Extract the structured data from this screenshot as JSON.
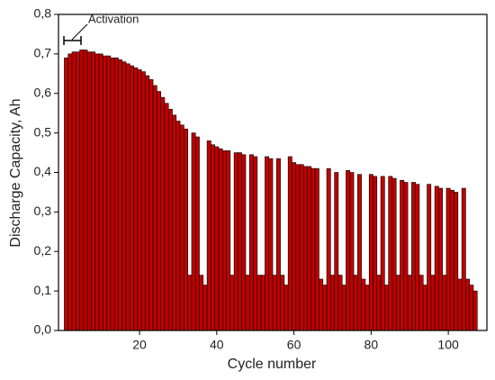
{
  "chart_data": {
    "type": "bar",
    "x_label": "Cycle number",
    "y_label": "Discharge Capacity, Ah",
    "annotation": "Activation",
    "x": [
      1,
      2,
      3,
      4,
      5,
      6,
      7,
      8,
      9,
      10,
      11,
      12,
      13,
      14,
      15,
      16,
      17,
      18,
      19,
      20,
      21,
      22,
      23,
      24,
      25,
      26,
      27,
      28,
      29,
      30,
      31,
      32,
      33,
      34,
      35,
      36,
      37,
      38,
      39,
      40,
      41,
      42,
      43,
      44,
      45,
      46,
      47,
      48,
      49,
      50,
      51,
      52,
      53,
      54,
      55,
      56,
      57,
      58,
      59,
      60,
      61,
      62,
      63,
      64,
      65,
      66,
      67,
      68,
      69,
      70,
      71,
      72,
      73,
      74,
      75,
      76,
      77,
      78,
      79,
      80,
      81,
      82,
      83,
      84,
      85,
      86,
      87,
      88,
      89,
      90,
      91,
      92,
      93,
      94,
      95,
      96,
      97,
      98,
      99,
      100,
      101,
      102,
      103,
      104,
      105,
      106,
      107
    ],
    "values": [
      0.69,
      0.7,
      0.705,
      0.705,
      0.71,
      0.71,
      0.705,
      0.705,
      0.7,
      0.7,
      0.695,
      0.695,
      0.69,
      0.69,
      0.685,
      0.68,
      0.675,
      0.67,
      0.665,
      0.66,
      0.655,
      0.645,
      0.635,
      0.62,
      0.605,
      0.59,
      0.575,
      0.56,
      0.545,
      0.53,
      0.52,
      0.51,
      0.14,
      0.5,
      0.49,
      0.14,
      0.115,
      0.48,
      0.47,
      0.465,
      0.46,
      0.455,
      0.455,
      0.14,
      0.45,
      0.45,
      0.445,
      0.14,
      0.445,
      0.44,
      0.14,
      0.14,
      0.44,
      0.435,
      0.14,
      0.435,
      0.14,
      0.115,
      0.44,
      0.425,
      0.42,
      0.42,
      0.415,
      0.415,
      0.41,
      0.41,
      0.13,
      0.115,
      0.41,
      0.14,
      0.4,
      0.14,
      0.115,
      0.405,
      0.4,
      0.14,
      0.395,
      0.13,
      0.115,
      0.395,
      0.39,
      0.14,
      0.39,
      0.115,
      0.39,
      0.385,
      0.14,
      0.38,
      0.375,
      0.14,
      0.375,
      0.37,
      0.14,
      0.115,
      0.37,
      0.14,
      0.365,
      0.36,
      0.14,
      0.36,
      0.355,
      0.35,
      0.13,
      0.36,
      0.13,
      0.115,
      0.1
    ],
    "color": "#c00000",
    "edge_color": "#000000",
    "xlim": [
      -1,
      110
    ],
    "ylim": [
      0,
      0.8
    ],
    "xticks": [
      20,
      40,
      60,
      80,
      100
    ],
    "yticks": [
      {
        "value": 0,
        "label": "0,0"
      },
      {
        "value": 0.1,
        "label": "0,1"
      },
      {
        "value": 0.2,
        "label": "0,2"
      },
      {
        "value": 0.3,
        "label": "0,3"
      },
      {
        "value": 0.4,
        "label": "0,4"
      },
      {
        "value": 0.5,
        "label": "0,5"
      },
      {
        "value": 0.6,
        "label": "0,6"
      },
      {
        "value": 0.7,
        "label": "0,7"
      },
      {
        "value": 0.8,
        "label": "0,8"
      }
    ]
  }
}
